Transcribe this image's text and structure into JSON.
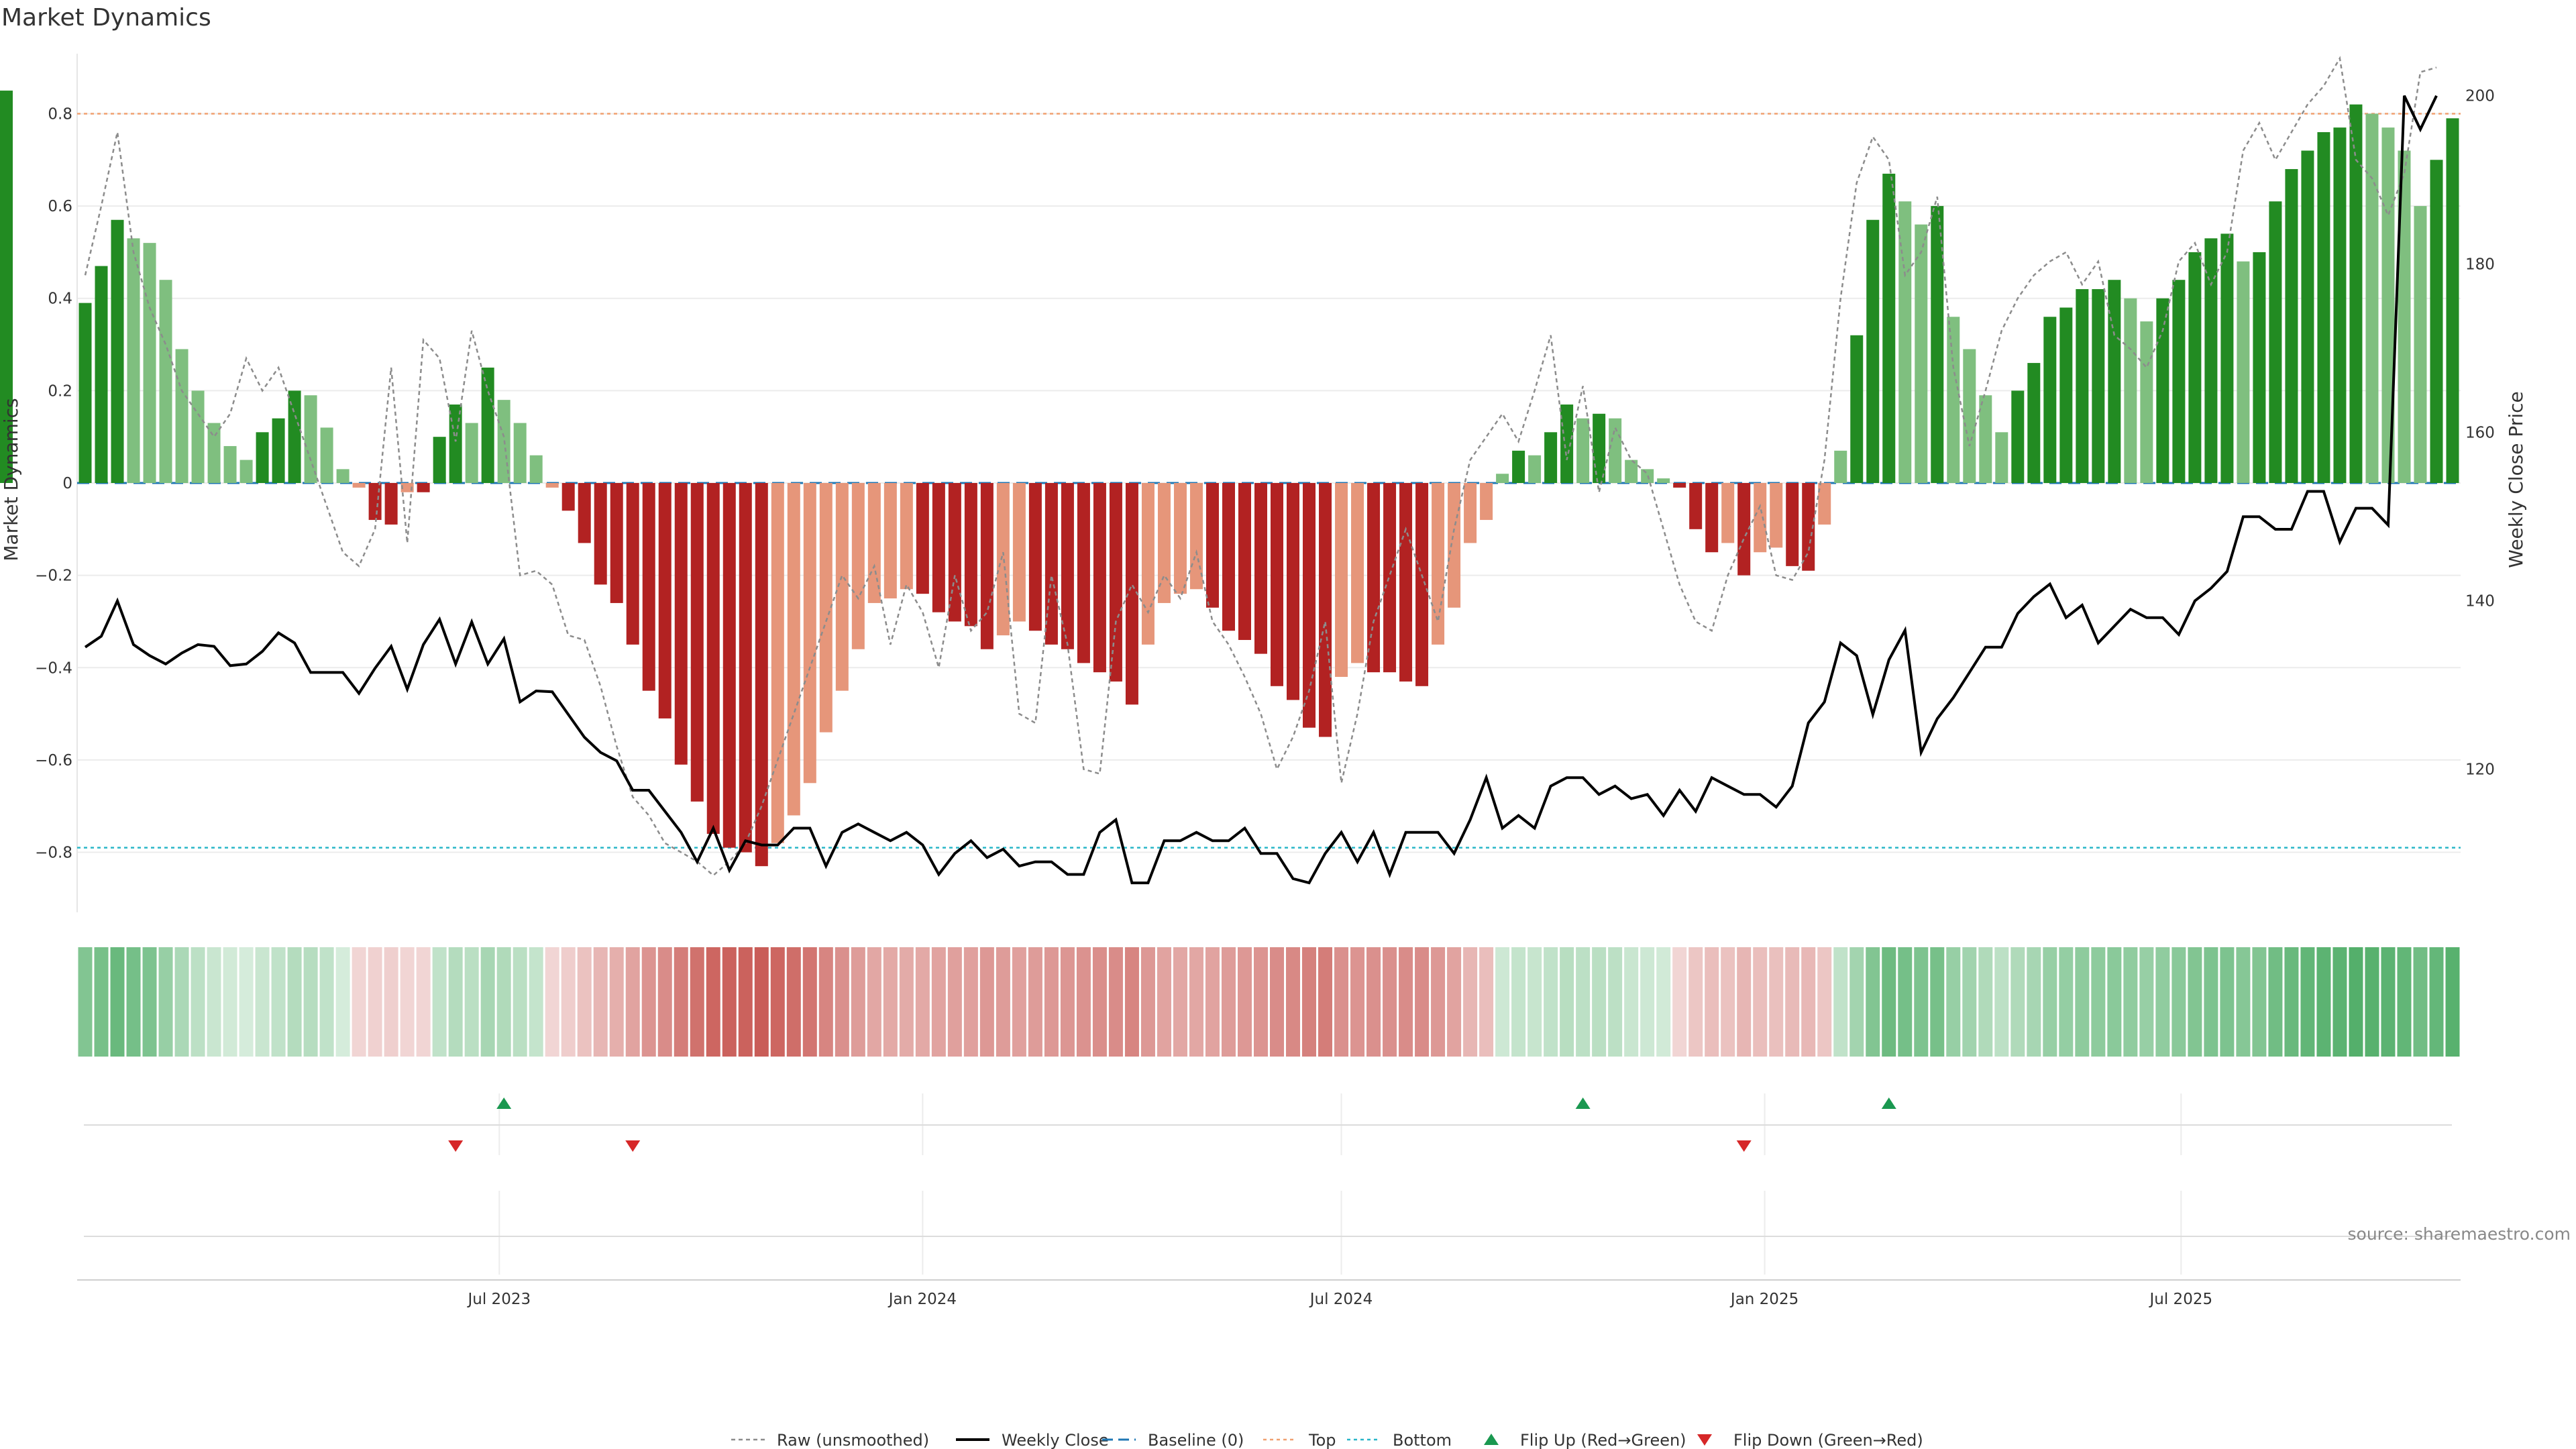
{
  "title": "Market Dynamics",
  "source_text": "source: sharemaestro.com",
  "colors": {
    "strong_green": "#228B22",
    "light_green": "#7FBF7F",
    "strong_red": "#B22222",
    "light_red": "#E6967A",
    "top_line": "#F0A070",
    "bottom_line": "#29B6C8",
    "baseline": "#1F77B4",
    "raw": "#8C8C8C",
    "close": "#000000",
    "flip_up": "#1A9850",
    "flip_down": "#D62728"
  },
  "legend": [
    {
      "label": "Raw (unsmoothed)",
      "icon": "dotted-grey-line"
    },
    {
      "label": "Weekly Close",
      "icon": "solid-black-line"
    },
    {
      "label": "Baseline (0)",
      "icon": "dashed-blue-line"
    },
    {
      "label": "Top",
      "icon": "dotted-orange-line"
    },
    {
      "label": "Bottom",
      "icon": "dotted-cyan-line"
    },
    {
      "label": "Flip Up (Red→Green)",
      "icon": "green-up-triangle"
    },
    {
      "label": "Flip Down (Green→Red)",
      "icon": "red-down-triangle"
    }
  ],
  "chart_data": {
    "type": "bar",
    "title": "Market Dynamics",
    "ylabel": "Market Dynamics",
    "y2label": "Weekly Close Price",
    "ylim": [
      -0.93,
      0.93
    ],
    "y2lim": [
      103,
      205
    ],
    "yticks": [
      -0.8,
      -0.6,
      -0.4,
      -0.2,
      0,
      0.2,
      0.4,
      0.6,
      0.8
    ],
    "ytick_labels": [
      "−0.8",
      "−0.6",
      "−0.4",
      "−0.2",
      "0",
      "0.2",
      "0.4",
      "0.6",
      "0.8"
    ],
    "y2ticks": [
      120,
      140,
      160,
      180,
      200
    ],
    "x_start": "2023-01-02",
    "x_end": "2025-10-27",
    "xticks": [
      "2023-07-01",
      "2024-01-01",
      "2024-07-01",
      "2025-01-01",
      "2025-07-01"
    ],
    "xtick_labels": [
      "Jul 2023",
      "Jan 2024",
      "Jul 2024",
      "Jan 2025",
      "Jul 2025"
    ],
    "thresholds": {
      "top": 0.8,
      "bottom": -0.79,
      "baseline": 0
    },
    "weeks": [
      "2023-01-02",
      "2023-01-09",
      "2023-01-16",
      "2023-01-23",
      "2023-01-30",
      "2023-02-06",
      "2023-02-13",
      "2023-02-20",
      "2023-02-27",
      "2023-03-06",
      "2023-03-13",
      "2023-03-20",
      "2023-03-27",
      "2023-04-03",
      "2023-04-10",
      "2023-04-17",
      "2023-04-24",
      "2023-05-01",
      "2023-05-08",
      "2023-05-15",
      "2023-05-22",
      "2023-05-29",
      "2023-06-05",
      "2023-06-12",
      "2023-06-19",
      "2023-06-26",
      "2023-07-03",
      "2023-07-10",
      "2023-07-17",
      "2023-07-24",
      "2023-07-31",
      "2023-08-07",
      "2023-08-14",
      "2023-08-21",
      "2023-08-28",
      "2023-09-04",
      "2023-09-11",
      "2023-09-18",
      "2023-09-25",
      "2023-10-02",
      "2023-10-09",
      "2023-10-16",
      "2023-10-23",
      "2023-10-30",
      "2023-11-06",
      "2023-11-13",
      "2023-11-20",
      "2023-11-27",
      "2023-12-04",
      "2023-12-11",
      "2023-12-18",
      "2023-12-25",
      "2024-01-01",
      "2024-01-08",
      "2024-01-15",
      "2024-01-22",
      "2024-01-29",
      "2024-02-05",
      "2024-02-12",
      "2024-02-19",
      "2024-02-26",
      "2024-03-04",
      "2024-03-11",
      "2024-03-18",
      "2024-03-25",
      "2024-04-01",
      "2024-04-08",
      "2024-04-15",
      "2024-04-22",
      "2024-04-29",
      "2024-05-06",
      "2024-05-13",
      "2024-05-20",
      "2024-05-27",
      "2024-06-03",
      "2024-06-10",
      "2024-06-17",
      "2024-06-24",
      "2024-07-01",
      "2024-07-08",
      "2024-07-15",
      "2024-07-22",
      "2024-07-29",
      "2024-08-05",
      "2024-08-12",
      "2024-08-19",
      "2024-08-26",
      "2024-09-02",
      "2024-09-09",
      "2024-09-16",
      "2024-09-23",
      "2024-09-30",
      "2024-10-07",
      "2024-10-14",
      "2024-10-21",
      "2024-10-28",
      "2024-11-04",
      "2024-11-11",
      "2024-11-18",
      "2024-11-25",
      "2024-12-02",
      "2024-12-09",
      "2024-12-16",
      "2024-12-23",
      "2024-12-30",
      "2025-01-06",
      "2025-01-13",
      "2025-01-20",
      "2025-01-27",
      "2025-02-03",
      "2025-02-10",
      "2025-02-17",
      "2025-02-24",
      "2025-03-03",
      "2025-03-10",
      "2025-03-17",
      "2025-03-24",
      "2025-03-31",
      "2025-04-07",
      "2025-04-14",
      "2025-04-21",
      "2025-04-28",
      "2025-05-05",
      "2025-05-12",
      "2025-05-19",
      "2025-05-26",
      "2025-06-02",
      "2025-06-09",
      "2025-06-16",
      "2025-06-23",
      "2025-06-30",
      "2025-07-07",
      "2025-07-14",
      "2025-07-21",
      "2025-07-28",
      "2025-08-04",
      "2025-08-11",
      "2025-08-18",
      "2025-08-25",
      "2025-09-01",
      "2025-09-08",
      "2025-09-15",
      "2025-09-22",
      "2025-09-29",
      "2025-10-06",
      "2025-10-13",
      "2025-10-20",
      "2025-10-27"
    ],
    "smoothed": [
      0.39,
      0.47,
      0.57,
      0.53,
      0.52,
      0.44,
      0.29,
      0.2,
      0.13,
      0.08,
      0.05,
      0.11,
      0.14,
      0.2,
      0.19,
      0.12,
      0.03,
      -0.01,
      -0.08,
      -0.09,
      -0.02,
      -0.02,
      0.1,
      0.17,
      0.13,
      0.25,
      0.18,
      0.13,
      0.06,
      -0.01,
      -0.06,
      -0.13,
      -0.22,
      -0.26,
      -0.35,
      -0.45,
      -0.51,
      -0.61,
      -0.69,
      -0.76,
      -0.79,
      -0.8,
      -0.83,
      -0.78,
      -0.72,
      -0.65,
      -0.54,
      -0.45,
      -0.36,
      -0.26,
      -0.25,
      -0.23,
      -0.24,
      -0.28,
      -0.3,
      -0.31,
      -0.36,
      -0.33,
      -0.3,
      -0.32,
      -0.35,
      -0.36,
      -0.39,
      -0.41,
      -0.43,
      -0.48,
      -0.35,
      -0.26,
      -0.24,
      -0.23,
      -0.27,
      -0.32,
      -0.34,
      -0.37,
      -0.44,
      -0.47,
      -0.53,
      -0.55,
      -0.42,
      -0.39,
      -0.41,
      -0.41,
      -0.43,
      -0.44,
      -0.35,
      -0.27,
      -0.13,
      -0.08,
      0.02,
      0.07,
      0.06,
      0.11,
      0.17,
      0.14,
      0.15,
      0.14,
      0.05,
      0.03,
      0.01,
      -0.01,
      -0.1,
      -0.15,
      -0.13,
      -0.2,
      -0.15,
      -0.14,
      -0.18,
      -0.19,
      -0.09,
      0.07,
      0.32,
      0.57,
      0.67,
      0.61,
      0.56,
      0.6,
      0.36,
      0.29,
      0.19,
      0.11,
      0.2,
      0.26,
      0.36,
      0.38,
      0.42,
      0.42,
      0.44,
      0.4,
      0.35,
      0.4,
      0.44,
      0.5,
      0.53,
      0.54,
      0.48,
      0.5,
      0.61,
      0.68,
      0.72,
      0.76,
      0.77,
      0.82,
      0.8,
      0.77,
      0.72,
      0.6,
      0.7,
      0.79,
      0.85
    ],
    "raw": [
      0.45,
      0.6,
      0.76,
      0.5,
      0.38,
      0.3,
      0.2,
      0.15,
      0.1,
      0.15,
      0.27,
      0.2,
      0.25,
      0.15,
      0.05,
      -0.05,
      -0.15,
      -0.18,
      -0.1,
      0.25,
      -0.13,
      0.31,
      0.27,
      0.09,
      0.33,
      0.2,
      0.1,
      -0.2,
      -0.19,
      -0.22,
      -0.33,
      -0.34,
      -0.44,
      -0.57,
      -0.68,
      -0.72,
      -0.78,
      -0.8,
      -0.82,
      -0.85,
      -0.82,
      -0.78,
      -0.7,
      -0.6,
      -0.5,
      -0.4,
      -0.3,
      -0.2,
      -0.25,
      -0.18,
      -0.35,
      -0.22,
      -0.28,
      -0.4,
      -0.2,
      -0.32,
      -0.28,
      -0.15,
      -0.5,
      -0.52,
      -0.2,
      -0.35,
      -0.62,
      -0.63,
      -0.3,
      -0.22,
      -0.28,
      -0.2,
      -0.25,
      -0.15,
      -0.3,
      -0.35,
      -0.42,
      -0.5,
      -0.62,
      -0.55,
      -0.45,
      -0.3,
      -0.65,
      -0.5,
      -0.3,
      -0.2,
      -0.1,
      -0.2,
      -0.3,
      -0.1,
      0.05,
      0.1,
      0.15,
      0.09,
      0.2,
      0.32,
      0.05,
      0.21,
      -0.02,
      0.12,
      0.05,
      0.02,
      -0.1,
      -0.22,
      -0.3,
      -0.32,
      -0.2,
      -0.12,
      -0.05,
      -0.2,
      -0.21,
      -0.15,
      0.05,
      0.4,
      0.65,
      0.75,
      0.7,
      0.45,
      0.5,
      0.62,
      0.25,
      0.08,
      0.2,
      0.33,
      0.4,
      0.45,
      0.48,
      0.5,
      0.43,
      0.48,
      0.32,
      0.29,
      0.25,
      0.33,
      0.48,
      0.52,
      0.43,
      0.5,
      0.72,
      0.78,
      0.7,
      0.76,
      0.82,
      0.86,
      0.92,
      0.7,
      0.66,
      0.58,
      0.67,
      0.89,
      0.9
    ],
    "weekly_close": [
      134.5,
      135.8,
      140.0,
      134.8,
      133.5,
      132.5,
      133.8,
      134.8,
      134.6,
      132.3,
      132.5,
      134.0,
      136.2,
      135.0,
      131.5,
      131.5,
      131.5,
      129.0,
      132.0,
      134.6,
      129.5,
      134.8,
      137.8,
      132.5,
      137.5,
      132.5,
      135.5,
      128.0,
      129.3,
      129.2,
      126.5,
      123.8,
      122.0,
      121.0,
      117.5,
      117.5,
      115.0,
      112.5,
      109.0,
      113.0,
      108.0,
      111.5,
      111.0,
      111.0,
      113.0,
      113.0,
      108.5,
      112.5,
      113.5,
      112.5,
      111.5,
      112.5,
      111.0,
      107.5,
      110.0,
      111.5,
      109.5,
      110.5,
      108.5,
      109.0,
      109.0,
      107.5,
      107.5,
      112.5,
      114.0,
      106.5,
      106.5,
      111.5,
      111.5,
      112.5,
      111.5,
      111.5,
      113.0,
      110.0,
      110.0,
      107.0,
      106.5,
      110.0,
      112.5,
      109.0,
      112.5,
      107.5,
      112.5,
      112.5,
      112.5,
      110.0,
      114.0,
      119.0,
      113.0,
      114.5,
      113.0,
      118.0,
      119.0,
      119.0,
      117.0,
      118.0,
      116.5,
      117.0,
      114.5,
      117.5,
      115.0,
      119.0,
      118.0,
      117.0,
      117.0,
      115.5,
      118.0,
      125.5,
      128.0,
      135.0,
      133.5,
      126.5,
      133.0,
      136.5,
      122.0,
      126.0,
      128.5,
      131.5,
      134.5,
      134.5,
      138.5,
      140.5,
      142.0,
      138.0,
      139.5,
      135.0,
      137.0,
      139.0,
      138.0,
      138.0,
      136.0,
      140.0,
      141.5,
      143.5,
      150.0,
      150.0,
      148.5,
      148.5,
      153.0,
      153.0,
      147.0,
      151.0,
      151.0,
      149.0,
      200.0,
      196.0,
      200.0
    ],
    "regime_strength": [
      0.6,
      0.65,
      0.72,
      0.66,
      0.62,
      0.5,
      0.4,
      0.32,
      0.26,
      0.22,
      0.2,
      0.26,
      0.3,
      0.36,
      0.35,
      0.3,
      0.2,
      0.22,
      0.24,
      0.25,
      0.22,
      0.22,
      0.3,
      0.36,
      0.33,
      0.42,
      0.38,
      0.33,
      0.28,
      0.22,
      0.26,
      0.32,
      0.38,
      0.42,
      0.48,
      0.56,
      0.6,
      0.68,
      0.74,
      0.8,
      0.82,
      0.82,
      0.85,
      0.8,
      0.76,
      0.72,
      0.64,
      0.58,
      0.52,
      0.46,
      0.45,
      0.44,
      0.45,
      0.48,
      0.5,
      0.5,
      0.54,
      0.52,
      0.5,
      0.52,
      0.54,
      0.55,
      0.57,
      0.59,
      0.6,
      0.64,
      0.54,
      0.48,
      0.46,
      0.46,
      0.48,
      0.52,
      0.54,
      0.56,
      0.6,
      0.62,
      0.66,
      0.68,
      0.58,
      0.56,
      0.58,
      0.58,
      0.6,
      0.6,
      0.54,
      0.48,
      0.38,
      0.34,
      0.24,
      0.28,
      0.27,
      0.3,
      0.34,
      0.32,
      0.33,
      0.32,
      0.26,
      0.24,
      0.22,
      0.22,
      0.3,
      0.34,
      0.32,
      0.38,
      0.34,
      0.33,
      0.36,
      0.37,
      0.3,
      0.3,
      0.44,
      0.6,
      0.7,
      0.66,
      0.62,
      0.65,
      0.5,
      0.45,
      0.38,
      0.32,
      0.38,
      0.42,
      0.5,
      0.51,
      0.54,
      0.54,
      0.56,
      0.53,
      0.5,
      0.53,
      0.56,
      0.6,
      0.62,
      0.62,
      0.58,
      0.6,
      0.68,
      0.72,
      0.75,
      0.78,
      0.78,
      0.82,
      0.8,
      0.78,
      0.75,
      0.68,
      0.74,
      0.8,
      0.84
    ],
    "flip_up": [
      "2023-07-03",
      "2024-10-14",
      "2025-02-24"
    ],
    "flip_down": [
      "2023-06-12",
      "2023-08-28",
      "2024-12-23"
    ]
  }
}
